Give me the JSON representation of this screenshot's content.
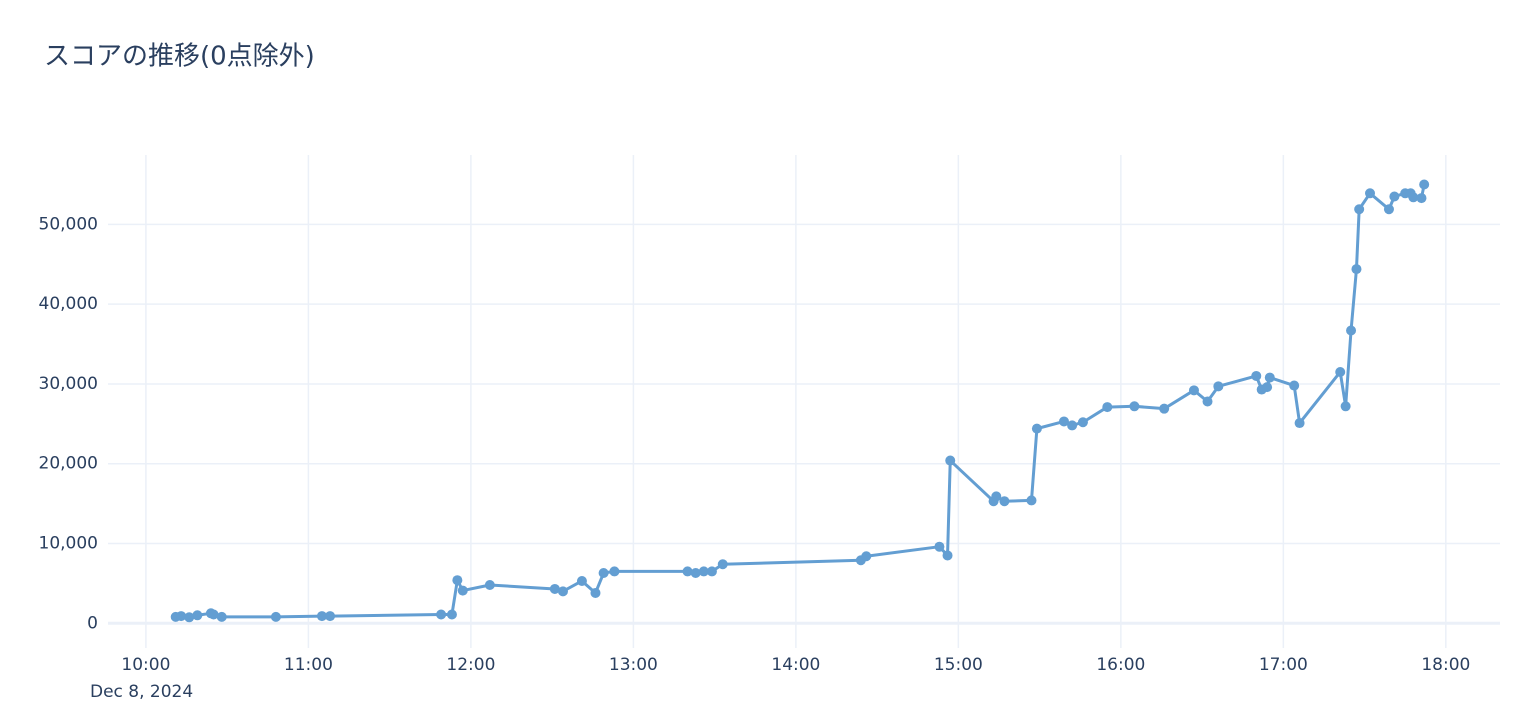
{
  "chart_data": {
    "type": "line",
    "title": "スコアの推移(0点除外)",
    "x": [
      "2024-12-08 10:11",
      "2024-12-08 10:13",
      "2024-12-08 10:16",
      "2024-12-08 10:19",
      "2024-12-08 10:24",
      "2024-12-08 10:25",
      "2024-12-08 10:28",
      "2024-12-08 10:48",
      "2024-12-08 11:05",
      "2024-12-08 11:08",
      "2024-12-08 11:49",
      "2024-12-08 11:53",
      "2024-12-08 11:55",
      "2024-12-08 11:57",
      "2024-12-08 12:07",
      "2024-12-08 12:31",
      "2024-12-08 12:34",
      "2024-12-08 12:41",
      "2024-12-08 12:46",
      "2024-12-08 12:49",
      "2024-12-08 12:53",
      "2024-12-08 13:20",
      "2024-12-08 13:23",
      "2024-12-08 13:26",
      "2024-12-08 13:29",
      "2024-12-08 13:33",
      "2024-12-08 14:24",
      "2024-12-08 14:26",
      "2024-12-08 14:53",
      "2024-12-08 14:56",
      "2024-12-08 14:57",
      "2024-12-08 15:13",
      "2024-12-08 15:14",
      "2024-12-08 15:17",
      "2024-12-08 15:27",
      "2024-12-08 15:29",
      "2024-12-08 15:39",
      "2024-12-08 15:42",
      "2024-12-08 15:46",
      "2024-12-08 15:55",
      "2024-12-08 16:05",
      "2024-12-08 16:16",
      "2024-12-08 16:27",
      "2024-12-08 16:32",
      "2024-12-08 16:36",
      "2024-12-08 16:50",
      "2024-12-08 16:52",
      "2024-12-08 16:54",
      "2024-12-08 16:55",
      "2024-12-08 17:04",
      "2024-12-08 17:06",
      "2024-12-08 17:21",
      "2024-12-08 17:23",
      "2024-12-08 17:25",
      "2024-12-08 17:27",
      "2024-12-08 17:28",
      "2024-12-08 17:32",
      "2024-12-08 17:39",
      "2024-12-08 17:41",
      "2024-12-08 17:45",
      "2024-12-08 17:47",
      "2024-12-08 17:48",
      "2024-12-08 17:51",
      "2024-12-08 17:52"
    ],
    "values": [
      800,
      900,
      750,
      1000,
      1250,
      1100,
      800,
      800,
      900,
      900,
      1100,
      1100,
      5400,
      4100,
      4800,
      4300,
      4000,
      5300,
      3800,
      6300,
      6500,
      6500,
      6300,
      6500,
      6500,
      7400,
      7900,
      8400,
      9600,
      8500,
      20400,
      15300,
      15900,
      15300,
      15400,
      24400,
      25300,
      24800,
      25200,
      27100,
      27200,
      26900,
      29200,
      27800,
      29700,
      31000,
      29300,
      29600,
      30800,
      29800,
      25100,
      31500,
      27200,
      36700,
      44400,
      51900,
      53900,
      51900,
      53500,
      53900,
      53900,
      53400,
      53300,
      55000
    ],
    "color": "#639ed2",
    "xlim": [
      "2024-12-08 09:46",
      "2024-12-08 18:20"
    ],
    "xticks": [
      {
        "value": "2024-12-08 10:00",
        "label": "10:00"
      },
      {
        "value": "2024-12-08 11:00",
        "label": "11:00"
      },
      {
        "value": "2024-12-08 12:00",
        "label": "12:00"
      },
      {
        "value": "2024-12-08 13:00",
        "label": "13:00"
      },
      {
        "value": "2024-12-08 14:00",
        "label": "14:00"
      },
      {
        "value": "2024-12-08 15:00",
        "label": "15:00"
      },
      {
        "value": "2024-12-08 16:00",
        "label": "16:00"
      },
      {
        "value": "2024-12-08 17:00",
        "label": "17:00"
      },
      {
        "value": "2024-12-08 18:00",
        "label": "18:00"
      }
    ],
    "x_date_label": "Dec 8, 2024",
    "ylim": [
      -3100,
      58700
    ],
    "yticks": [
      0,
      {
        "value": 10000,
        "label": "10,000"
      },
      {
        "value": 20000,
        "label": "20,000"
      },
      {
        "value": 30000,
        "label": "30,000"
      },
      {
        "value": 40000,
        "label": "40,000"
      },
      {
        "value": 50000,
        "label": "50,000"
      }
    ],
    "grid": true
  }
}
